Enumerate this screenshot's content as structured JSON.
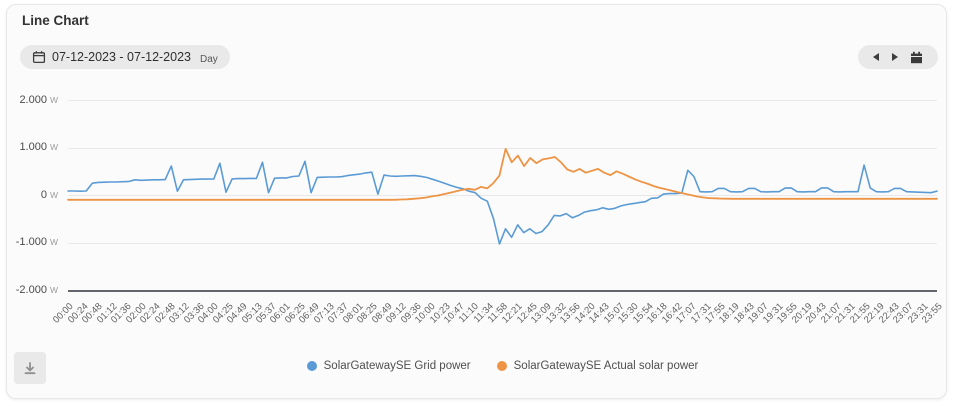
{
  "window": {
    "title": "Line Chart"
  },
  "toolbar": {
    "date_range": "07-12-2023 - 07-12-2023",
    "granularity": "Day",
    "calendar_icon": "calendar-icon",
    "prev_icon": "chevron-left-icon",
    "next_icon": "chevron-right-icon"
  },
  "footer": {
    "download_icon": "download-icon"
  },
  "colors": {
    "grid_power": "#5b9bd5",
    "solar_power": "#ee9445",
    "axis_line": "#63676d",
    "grid_line": "#e8e8e8"
  },
  "chart_data": {
    "type": "line",
    "title": "Line Chart",
    "xlabel": "",
    "ylabel": "W",
    "ylim": [
      -2000,
      2000
    ],
    "grid": true,
    "legend_position": "bottom",
    "x_start": "00:00",
    "x_step_minutes": 10,
    "y_ticks": [
      {
        "label": "2.000",
        "unit": "W",
        "value": 2000
      },
      {
        "label": "1.000",
        "unit": "W",
        "value": 1000
      },
      {
        "label": "0",
        "unit": "W",
        "value": 0
      },
      {
        "label": "-1.000",
        "unit": "W",
        "value": -1000
      },
      {
        "label": "-2.000",
        "unit": "W",
        "value": -2000
      }
    ],
    "x_tick_labels": [
      "00:00",
      "00:24",
      "00:48",
      "01:12",
      "01:36",
      "02:00",
      "02:24",
      "02:48",
      "03:12",
      "03:36",
      "04:00",
      "04:25",
      "04:49",
      "05:13",
      "05:37",
      "06:01",
      "06:25",
      "06:49",
      "07:13",
      "07:37",
      "08:01",
      "08:25",
      "08:49",
      "09:12",
      "09:36",
      "10:00",
      "10:23",
      "10:47",
      "11:10",
      "11:34",
      "11:58",
      "12:21",
      "12:45",
      "13:09",
      "13:32",
      "13:56",
      "14:20",
      "14:43",
      "15:07",
      "15:30",
      "15:54",
      "16:18",
      "16:42",
      "17:07",
      "17:31",
      "17:55",
      "18:19",
      "18:43",
      "19:07",
      "19:31",
      "19:55",
      "20:19",
      "20:43",
      "21:07",
      "21:31",
      "21:55",
      "22:19",
      "22:43",
      "23:07",
      "23:31",
      "23:55"
    ],
    "series": [
      {
        "name": "SolarGatewaySE Grid power",
        "color": "#5b9bd5",
        "unit": "W",
        "values": [
          95,
          95,
          90,
          95,
          260,
          275,
          280,
          285,
          285,
          290,
          295,
          330,
          320,
          325,
          330,
          330,
          335,
          620,
          90,
          330,
          335,
          340,
          345,
          345,
          350,
          680,
          70,
          350,
          355,
          355,
          360,
          360,
          700,
          60,
          365,
          370,
          370,
          400,
          410,
          720,
          60,
          380,
          385,
          390,
          390,
          395,
          420,
          435,
          450,
          475,
          490,
          30,
          430,
          410,
          405,
          410,
          415,
          420,
          405,
          380,
          340,
          300,
          255,
          210,
          170,
          140,
          90,
          60,
          -60,
          -120,
          -480,
          -1020,
          -700,
          -880,
          -620,
          -780,
          -700,
          -800,
          -760,
          -620,
          -420,
          -430,
          -380,
          -470,
          -420,
          -350,
          -320,
          -300,
          -260,
          -290,
          -270,
          -220,
          -190,
          -170,
          -150,
          -130,
          -60,
          -50,
          30,
          40,
          40,
          50,
          530,
          400,
          80,
          75,
          80,
          150,
          150,
          80,
          75,
          80,
          150,
          150,
          80,
          75,
          80,
          80,
          155,
          160,
          80,
          75,
          80,
          80,
          160,
          160,
          80,
          75,
          80,
          80,
          80,
          640,
          160,
          80,
          75,
          80,
          150,
          150,
          80,
          75,
          70,
          65,
          60,
          90
        ]
      },
      {
        "name": "SolarGatewaySE Actual solar power",
        "color": "#ee9445",
        "unit": "W",
        "values": [
          -90,
          -90,
          -90,
          -90,
          -90,
          -90,
          -90,
          -90,
          -90,
          -90,
          -90,
          -90,
          -90,
          -90,
          -90,
          -90,
          -90,
          -90,
          -90,
          -90,
          -90,
          -90,
          -90,
          -90,
          -90,
          -90,
          -90,
          -90,
          -90,
          -90,
          -90,
          -90,
          -90,
          -90,
          -90,
          -90,
          -90,
          -90,
          -90,
          -90,
          -90,
          -90,
          -90,
          -90,
          -90,
          -90,
          -90,
          -90,
          -90,
          -90,
          -90,
          -90,
          -90,
          -90,
          -85,
          -80,
          -70,
          -60,
          -45,
          -20,
          0,
          30,
          60,
          90,
          120,
          140,
          120,
          180,
          150,
          260,
          420,
          980,
          700,
          840,
          620,
          790,
          680,
          760,
          780,
          810,
          700,
          550,
          500,
          560,
          480,
          520,
          560,
          480,
          430,
          510,
          460,
          400,
          340,
          290,
          250,
          200,
          160,
          130,
          100,
          70,
          40,
          10,
          -20,
          -40,
          -55,
          -60,
          -65,
          -68,
          -70,
          -70,
          -70,
          -70,
          -70,
          -70,
          -70,
          -70,
          -70,
          -70,
          -70,
          -70,
          -70,
          -70,
          -70,
          -70,
          -70,
          -70,
          -70,
          -70,
          -70,
          -70,
          -70,
          -70,
          -70,
          -70,
          -70,
          -70,
          -70,
          -70,
          -70,
          -70,
          -70,
          -70
        ]
      }
    ]
  }
}
